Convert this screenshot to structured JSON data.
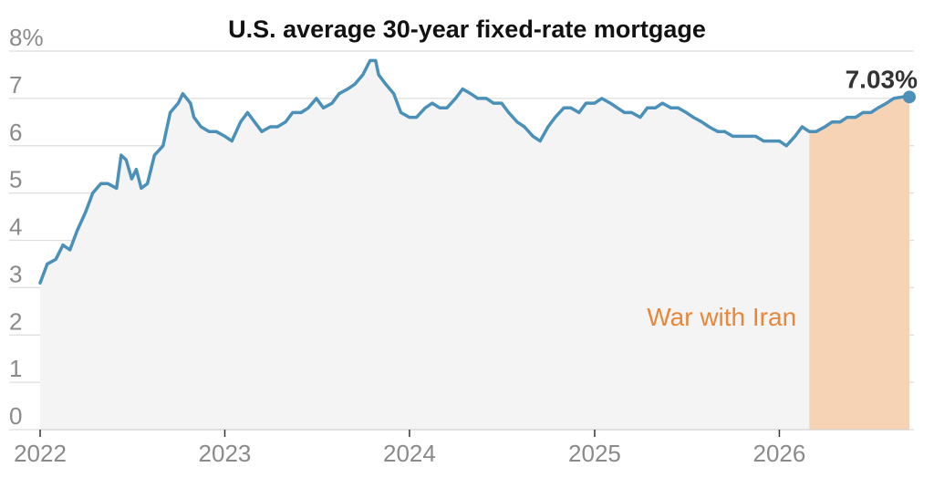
{
  "chart_data": {
    "type": "line",
    "title": "U.S. average 30-year fixed-rate mortgage",
    "xlabel": "",
    "ylabel": "",
    "ylim": [
      0,
      8
    ],
    "y_ticks": [
      "0",
      "1",
      "2",
      "3",
      "4",
      "5",
      "6",
      "7",
      "8%"
    ],
    "xlim": [
      "2022-01-01",
      "2026-09-15"
    ],
    "x_ticks": [
      "2022",
      "2023",
      "2024",
      "2025",
      "2026"
    ],
    "grid": true,
    "series": [
      {
        "color": "#4a90b8",
        "x": [
          "2022-01-01",
          "2022-01-15",
          "2022-02-01",
          "2022-02-15",
          "2022-03-01",
          "2022-03-15",
          "2022-04-01",
          "2022-04-15",
          "2022-05-01",
          "2022-05-15",
          "2022-06-01",
          "2022-06-10",
          "2022-06-20",
          "2022-07-01",
          "2022-07-10",
          "2022-07-20",
          "2022-08-01",
          "2022-08-15",
          "2022-09-01",
          "2022-09-15",
          "2022-10-01",
          "2022-10-10",
          "2022-10-25",
          "2022-11-01",
          "2022-11-15",
          "2022-12-01",
          "2022-12-15",
          "2023-01-01",
          "2023-01-15",
          "2023-02-01",
          "2023-02-15",
          "2023-03-01",
          "2023-03-15",
          "2023-04-01",
          "2023-04-15",
          "2023-05-01",
          "2023-05-15",
          "2023-06-01",
          "2023-06-15",
          "2023-07-01",
          "2023-07-15",
          "2023-08-01",
          "2023-08-15",
          "2023-09-01",
          "2023-09-15",
          "2023-10-01",
          "2023-10-15",
          "2023-10-26",
          "2023-11-01",
          "2023-11-15",
          "2023-12-01",
          "2023-12-15",
          "2024-01-01",
          "2024-01-15",
          "2024-02-01",
          "2024-02-15",
          "2024-03-01",
          "2024-03-15",
          "2024-04-01",
          "2024-04-15",
          "2024-05-01",
          "2024-05-15",
          "2024-06-01",
          "2024-06-15",
          "2024-07-01",
          "2024-07-15",
          "2024-08-01",
          "2024-08-15",
          "2024-09-01",
          "2024-09-15",
          "2024-10-01",
          "2024-10-15",
          "2024-11-01",
          "2024-11-15",
          "2024-12-01",
          "2024-12-15",
          "2025-01-01",
          "2025-01-15",
          "2025-02-01",
          "2025-02-15",
          "2025-03-01",
          "2025-03-15",
          "2025-04-01",
          "2025-04-15",
          "2025-05-01",
          "2025-05-15",
          "2025-06-01",
          "2025-06-15",
          "2025-07-01",
          "2025-07-15",
          "2025-08-01",
          "2025-08-15",
          "2025-09-01",
          "2025-09-15",
          "2025-10-01",
          "2025-10-15",
          "2025-11-01",
          "2025-11-15",
          "2025-12-01",
          "2025-12-15",
          "2026-01-01",
          "2026-01-15",
          "2026-02-01",
          "2026-02-15",
          "2026-03-01",
          "2026-03-15",
          "2026-04-01",
          "2026-04-15",
          "2026-05-01",
          "2026-05-15",
          "2026-06-01",
          "2026-06-15",
          "2026-07-01",
          "2026-07-15",
          "2026-08-01",
          "2026-08-15",
          "2026-09-01",
          "2026-09-15"
        ],
        "values": [
          3.1,
          3.5,
          3.6,
          3.9,
          3.8,
          4.2,
          4.6,
          5.0,
          5.2,
          5.2,
          5.1,
          5.8,
          5.7,
          5.3,
          5.5,
          5.1,
          5.2,
          5.8,
          6.0,
          6.7,
          6.9,
          7.1,
          6.9,
          6.6,
          6.4,
          6.3,
          6.3,
          6.2,
          6.1,
          6.5,
          6.7,
          6.5,
          6.3,
          6.4,
          6.4,
          6.5,
          6.7,
          6.7,
          6.8,
          7.0,
          6.8,
          6.9,
          7.1,
          7.2,
          7.3,
          7.5,
          7.8,
          7.8,
          7.5,
          7.3,
          7.1,
          6.7,
          6.6,
          6.6,
          6.8,
          6.9,
          6.8,
          6.8,
          7.0,
          7.2,
          7.1,
          7.0,
          7.0,
          6.9,
          6.9,
          6.7,
          6.5,
          6.4,
          6.2,
          6.1,
          6.4,
          6.6,
          6.8,
          6.8,
          6.7,
          6.9,
          6.9,
          7.0,
          6.9,
          6.8,
          6.7,
          6.7,
          6.6,
          6.8,
          6.8,
          6.9,
          6.8,
          6.8,
          6.7,
          6.6,
          6.5,
          6.4,
          6.3,
          6.3,
          6.2,
          6.2,
          6.2,
          6.2,
          6.1,
          6.1,
          6.1,
          6.0,
          6.2,
          6.4,
          6.3,
          6.3,
          6.4,
          6.5,
          6.5,
          6.6,
          6.6,
          6.7,
          6.7,
          6.8,
          6.9,
          7.0,
          7.03,
          7.03
        ]
      }
    ],
    "annotations": [
      {
        "text": "War with Iran",
        "start": "2026-03-01",
        "end": "2026-09-15",
        "color": "#f6d3b5",
        "text_color": "#e8873a"
      },
      {
        "text": "7.03%",
        "x": "2026-09-15",
        "y": 7.03
      }
    ],
    "area_fill": "#f4f4f4",
    "grid_color": "#dddddd"
  }
}
